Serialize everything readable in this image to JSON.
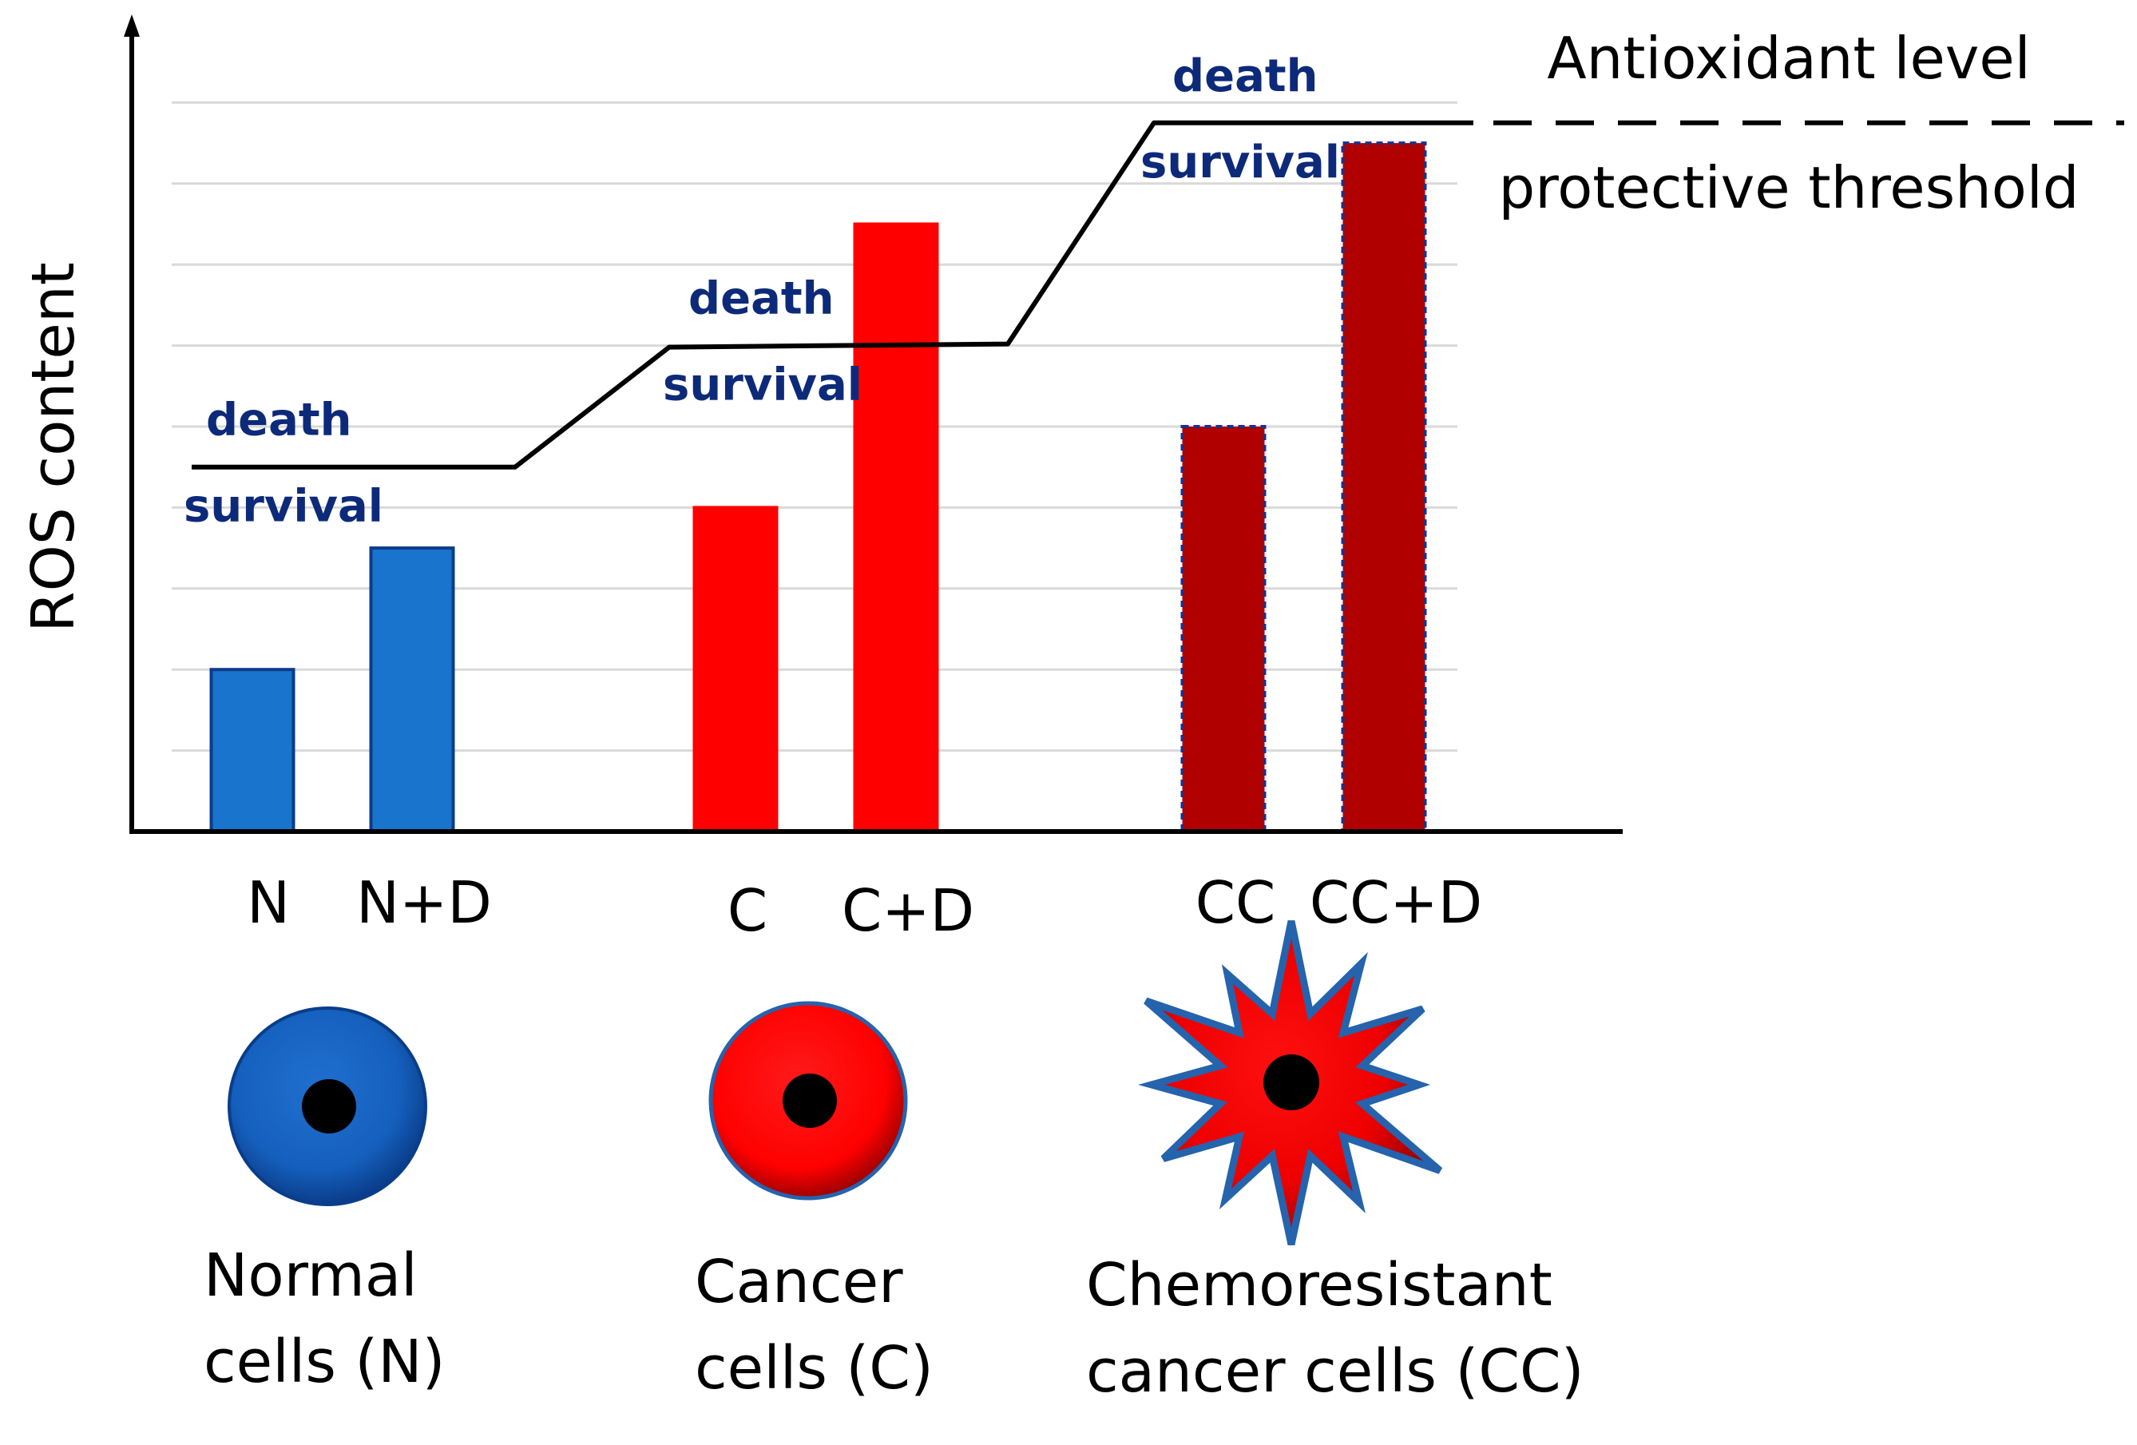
{
  "chart_data": {
    "type": "bar",
    "title": "",
    "xlabel": "",
    "ylabel": "ROS content",
    "ylim": [
      0,
      10
    ],
    "grid": true,
    "categories": [
      "N",
      "N+D",
      "C",
      "C+D",
      "CC",
      "CC+D"
    ],
    "values": [
      2.0,
      3.5,
      4.0,
      7.5,
      5.0,
      8.5
    ],
    "bar_colors": [
      "#1874cd",
      "#1874cd",
      "#ff0000",
      "#ff0000",
      "#b00000",
      "#b00000"
    ],
    "bar_borders": [
      "#0d3c8a",
      "#0d3c8a",
      "#ff0000",
      "#ff0000",
      "#1f2f8a",
      "#1f2f8a"
    ],
    "bar_border_dashed": [
      false,
      false,
      false,
      false,
      true,
      true
    ],
    "threshold": {
      "levels": [
        {
          "group": "Normal",
          "value": 4.5,
          "death_label": "death",
          "survival_label": "survival"
        },
        {
          "group": "Cancer",
          "value": 6.0,
          "death_label": "death",
          "survival_label": "survival"
        },
        {
          "group": "Chemoresistant",
          "value": 8.75,
          "death_label": "death",
          "survival_label": "survival"
        }
      ],
      "upper_label": "Antioxidant level",
      "lower_label": "protective threshold"
    }
  },
  "cells": [
    {
      "name": "normal",
      "line1": "Normal",
      "line2": "cells (N)",
      "fill": "#1565c0",
      "shape": "circle"
    },
    {
      "name": "cancer",
      "line1": "Cancer",
      "line2": "cells (C)",
      "fill": "#ff0000",
      "shape": "circle"
    },
    {
      "name": "chemoresistant",
      "line1": "Chemoresistant",
      "line2": "cancer cells (CC)",
      "fill": "#ff0000",
      "shape": "star"
    }
  ],
  "colors": {
    "annotation": "#0d2a7a",
    "axis": "#000000",
    "grid": "#d9d9d9",
    "outline": "#2563ad"
  }
}
